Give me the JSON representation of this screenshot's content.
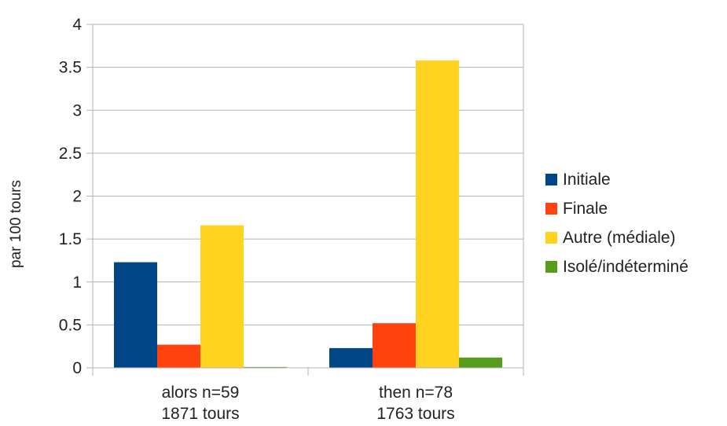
{
  "chart_data": {
    "type": "bar",
    "ylabel": "par 100 tours",
    "ylim": [
      0,
      4
    ],
    "yticks": [
      "0",
      "0.5",
      "1",
      "1.5",
      "2",
      "2.5",
      "3",
      "3.5",
      "4"
    ],
    "ytick_values": [
      0,
      0.5,
      1,
      1.5,
      2,
      2.5,
      3,
      3.5,
      4
    ],
    "categories": [
      {
        "line1": "alors n=59",
        "line2": "1871 tours"
      },
      {
        "line1": "then n=78",
        "line2": "1763 tours"
      }
    ],
    "grid": true,
    "legend_position": "right",
    "series": [
      {
        "name": "Initiale",
        "color": "#004586",
        "values": [
          1.23,
          0.23
        ]
      },
      {
        "name": "Finale",
        "color": "#ff420e",
        "values": [
          0.27,
          0.52
        ]
      },
      {
        "name": "Autre (médiale)",
        "color": "#ffd320",
        "values": [
          1.66,
          3.58
        ]
      },
      {
        "name": "Isolé/indéterminé",
        "color": "#579d1c",
        "values": [
          0.01,
          0.12
        ]
      }
    ]
  }
}
